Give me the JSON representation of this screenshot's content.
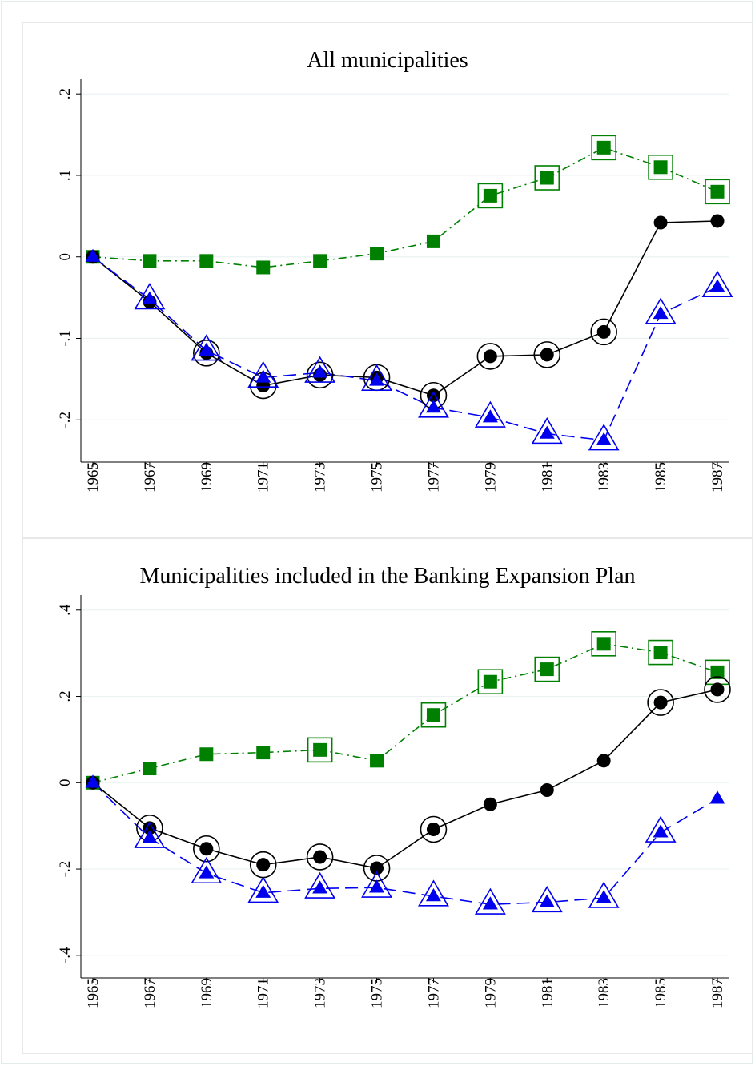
{
  "chart_data": [
    {
      "type": "line",
      "title": "All municipalities",
      "xlabel": "",
      "ylabel": "",
      "x": [
        1965,
        1967,
        1969,
        1971,
        1973,
        1975,
        1977,
        1979,
        1981,
        1983,
        1985,
        1987
      ],
      "x_tick_labels": [
        "1965",
        "1967",
        "1969",
        "1971",
        "1973",
        "1975",
        "1977",
        "1979",
        "1981",
        "1983",
        "1985",
        "1987"
      ],
      "ylim": [
        -0.24,
        0.21
      ],
      "y_ticks": [
        -0.2,
        -0.1,
        0,
        0.1,
        0.2
      ],
      "y_tick_labels": [
        "-.2",
        "-.1",
        "0",
        ".1",
        ".2"
      ],
      "grid": true,
      "series": [
        {
          "color": "#008000",
          "marker": "square",
          "line_style": "dash-dot",
          "values": [
            0.0,
            -0.005,
            -0.005,
            -0.013,
            -0.005,
            0.004,
            0.019,
            0.075,
            0.097,
            0.134,
            0.11,
            0.08
          ],
          "highlighted": [
            false,
            false,
            false,
            false,
            false,
            false,
            false,
            true,
            true,
            true,
            true,
            true
          ]
        },
        {
          "color": "#000000",
          "marker": "circle",
          "line_style": "solid",
          "values": [
            0.0,
            -0.055,
            -0.118,
            -0.158,
            -0.145,
            -0.148,
            -0.17,
            -0.122,
            -0.12,
            -0.092,
            0.042,
            0.044
          ],
          "highlighted": [
            false,
            false,
            true,
            true,
            true,
            true,
            true,
            true,
            true,
            true,
            false,
            false
          ]
        },
        {
          "color": "#0000ee",
          "marker": "triangle",
          "line_style": "dash",
          "values": [
            0.0,
            -0.052,
            -0.115,
            -0.148,
            -0.142,
            -0.152,
            -0.185,
            -0.197,
            -0.217,
            -0.225,
            -0.07,
            -0.037
          ],
          "highlighted": [
            false,
            true,
            true,
            true,
            true,
            true,
            true,
            true,
            true,
            true,
            true,
            true
          ]
        }
      ]
    },
    {
      "type": "line",
      "title": "Municipalities included in the Banking Expansion Plan",
      "xlabel": "",
      "ylabel": "",
      "x": [
        1965,
        1967,
        1969,
        1971,
        1973,
        1975,
        1977,
        1979,
        1981,
        1983,
        1985,
        1987
      ],
      "x_tick_labels": [
        "1965",
        "1967",
        "1969",
        "1971",
        "1973",
        "1975",
        "1977",
        "1979",
        "1981",
        "1983",
        "1985",
        "1987"
      ],
      "ylim": [
        -0.43,
        0.42
      ],
      "y_ticks": [
        -0.4,
        -0.2,
        0,
        0.2,
        0.4
      ],
      "y_tick_labels": [
        "-.4",
        "-.2",
        "0",
        ".2",
        ".4"
      ],
      "grid": true,
      "series": [
        {
          "color": "#008000",
          "marker": "square",
          "line_style": "dash-dot",
          "values": [
            0.0,
            0.033,
            0.066,
            0.07,
            0.076,
            0.051,
            0.157,
            0.234,
            0.263,
            0.322,
            0.302,
            0.256
          ],
          "highlighted": [
            false,
            false,
            false,
            false,
            true,
            false,
            true,
            true,
            true,
            true,
            true,
            true
          ]
        },
        {
          "color": "#000000",
          "marker": "circle",
          "line_style": "solid",
          "values": [
            0.0,
            -0.105,
            -0.153,
            -0.19,
            -0.172,
            -0.198,
            -0.108,
            -0.05,
            -0.017,
            0.051,
            0.186,
            0.216
          ],
          "highlighted": [
            false,
            true,
            true,
            true,
            true,
            true,
            true,
            false,
            false,
            false,
            true,
            true
          ]
        },
        {
          "color": "#0000ee",
          "marker": "triangle",
          "line_style": "dash",
          "values": [
            0.0,
            -0.128,
            -0.21,
            -0.255,
            -0.245,
            -0.243,
            -0.263,
            -0.282,
            -0.277,
            -0.267,
            -0.115,
            -0.037
          ],
          "highlighted": [
            false,
            true,
            true,
            true,
            true,
            true,
            true,
            true,
            true,
            true,
            true,
            false
          ]
        }
      ]
    }
  ]
}
